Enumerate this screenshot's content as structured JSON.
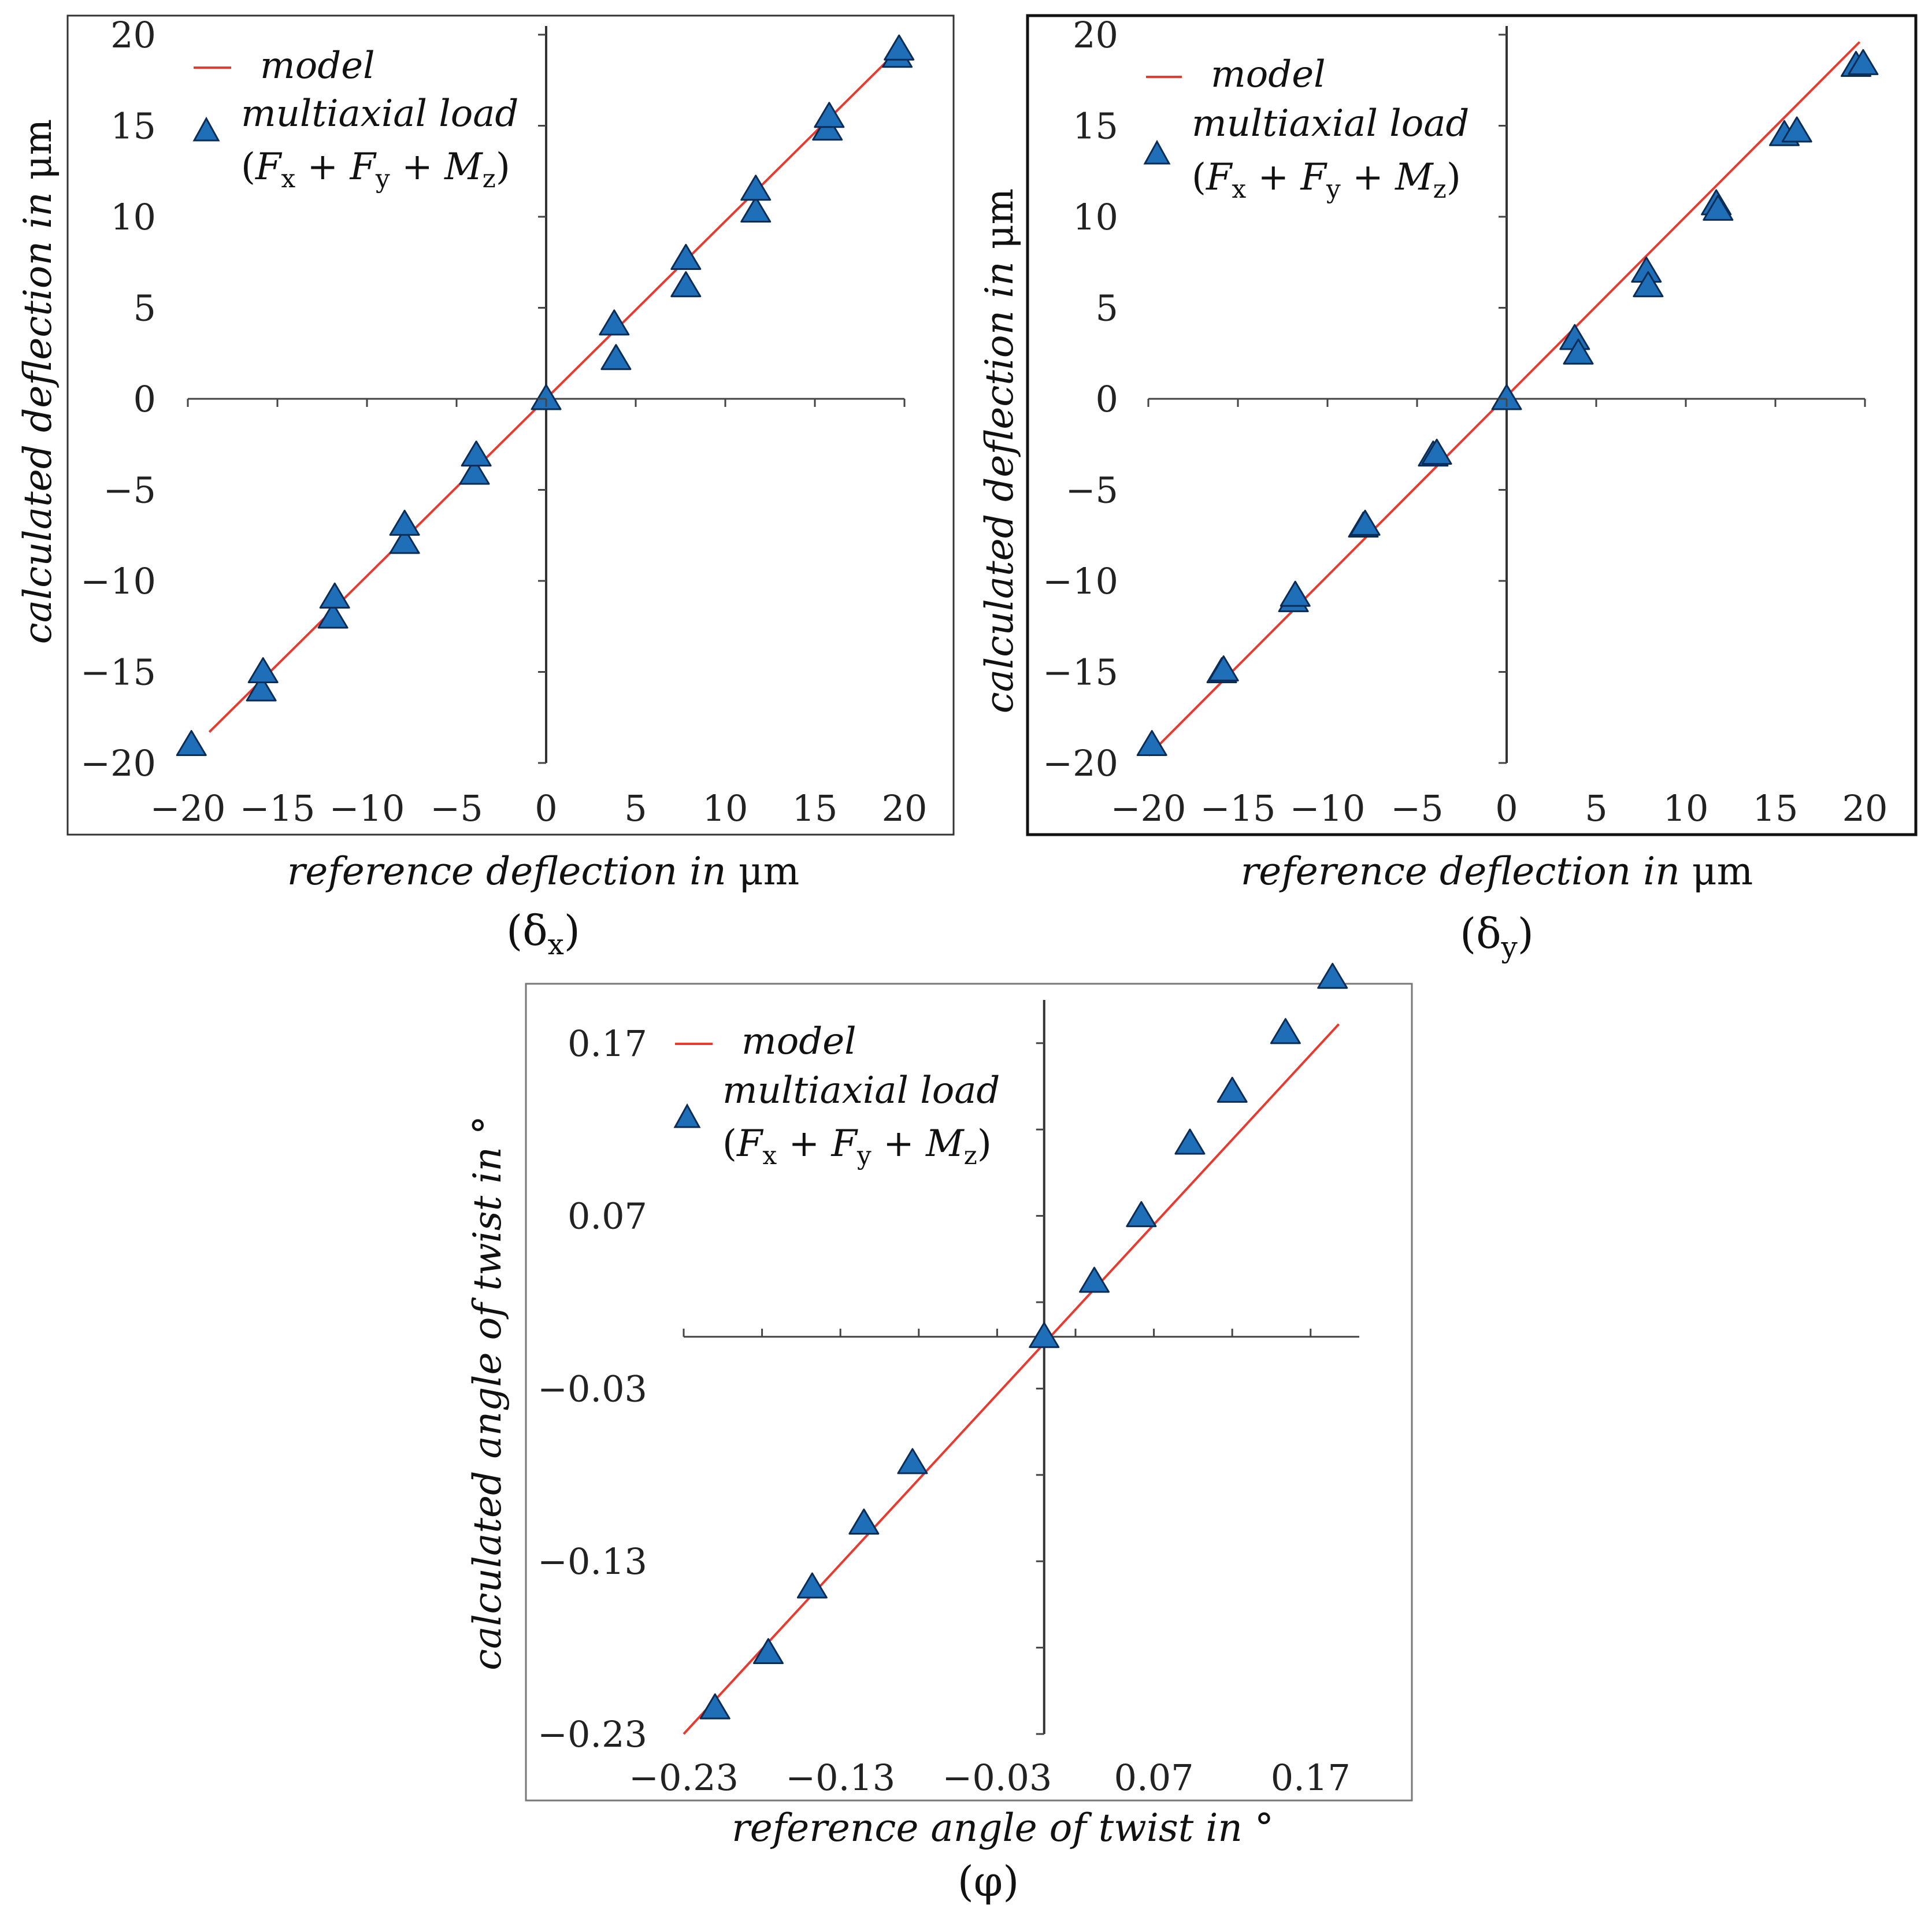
{
  "colors": {
    "model": "#e83a2f",
    "marker_fill": "#1f6fb8",
    "marker_stroke": "#0b2c55",
    "frame": "#333333"
  },
  "legend": {
    "model_label": "model",
    "load_label": "multiaxial load",
    "load_formula_open": "(",
    "load_fx": "F",
    "load_fx_sub": "x",
    "load_plus1": " + ",
    "load_fy": "F",
    "load_fy_sub": "y",
    "load_plus2": " + ",
    "load_mz": "M",
    "load_mz_sub": "z",
    "load_formula_close": ")"
  },
  "chart_data": [
    {
      "type": "scatter",
      "id": "delta-x",
      "caption": "(δ",
      "caption_sub": "x",
      "caption_close": ")",
      "xlabel": "reference deflection in",
      "xlabel_unit": "μm",
      "ylabel": "calculated deflection in",
      "ylabel_unit": "μm",
      "xlim": [
        -20,
        20
      ],
      "ylim": [
        -20,
        20
      ],
      "xticks": [
        -20,
        -15,
        -10,
        -5,
        0,
        5,
        10,
        15,
        20
      ],
      "xtick_labels": [
        "−20",
        "−15",
        "−10",
        "−5",
        "0",
        "5",
        "10",
        "15",
        "20"
      ],
      "yticks": [
        20,
        15,
        10,
        5,
        0,
        -5,
        -10,
        -15,
        -20
      ],
      "ytick_labels": [
        "20",
        "15",
        "10",
        "5",
        "0",
        "−5",
        "−10",
        "−15",
        "−20"
      ],
      "model_line": {
        "x": [
          -18.8,
          19.8
        ],
        "y": [
          -18.3,
          19.3
        ]
      },
      "series": [
        {
          "name": "multiaxial load (Fx + Fy + Mz)",
          "x": [
            -19.8,
            -15.9,
            -15.8,
            -11.9,
            -11.8,
            -7.9,
            -7.9,
            -4.0,
            -3.9,
            0,
            3.9,
            3.8,
            7.8,
            7.8,
            11.7,
            11.7,
            15.7,
            15.8,
            19.6,
            19.7
          ],
          "y": [
            -19.0,
            -16.0,
            -15.0,
            -12.0,
            -10.9,
            -7.9,
            -6.9,
            -4.1,
            -3.1,
            0,
            2.2,
            4.1,
            6.2,
            7.7,
            10.3,
            11.5,
            14.8,
            15.5,
            18.8,
            19.2
          ]
        }
      ]
    },
    {
      "type": "scatter",
      "id": "delta-y",
      "caption": "(δ",
      "caption_sub": "y",
      "caption_close": ")",
      "xlabel": "reference deflection in",
      "xlabel_unit": "μm",
      "ylabel": "calculated deflection in",
      "ylabel_unit": "μm",
      "xlim": [
        -20,
        20
      ],
      "ylim": [
        -20,
        20
      ],
      "xticks": [
        -20,
        -15,
        -10,
        -5,
        0,
        5,
        10,
        15,
        20
      ],
      "xtick_labels": [
        "−20",
        "−15",
        "−10",
        "−5",
        "0",
        "5",
        "10",
        "15",
        "20"
      ],
      "yticks": [
        20,
        15,
        10,
        5,
        0,
        -5,
        -10,
        -15,
        -20
      ],
      "ytick_labels": [
        "20",
        "15",
        "10",
        "5",
        "0",
        "−5",
        "−10",
        "−15",
        "−20"
      ],
      "model_line": {
        "x": [
          -20,
          19.7
        ],
        "y": [
          -19.6,
          19.6
        ]
      },
      "series": [
        {
          "name": "multiaxial load (Fx + Fy + Mz)",
          "x": [
            -19.8,
            -15.9,
            -15.8,
            -11.9,
            -11.8,
            -8.0,
            -7.9,
            -4.1,
            -3.9,
            0,
            3.8,
            4.0,
            7.8,
            7.9,
            11.7,
            11.8,
            15.5,
            16.2,
            19.5,
            19.9
          ],
          "y": [
            -19.0,
            -15.0,
            -14.9,
            -11.1,
            -10.8,
            -7.0,
            -6.9,
            -3.1,
            -3.0,
            0,
            3.3,
            2.5,
            7.0,
            6.2,
            10.7,
            10.4,
            14.5,
            14.7,
            18.3,
            18.4
          ]
        }
      ]
    },
    {
      "type": "scatter",
      "id": "phi",
      "caption": "(φ)",
      "xlabel": "reference angle of twist in °",
      "ylabel": "calculated angle of twist in °",
      "xlim": [
        -0.23,
        0.19
      ],
      "ylim": [
        -0.23,
        0.19
      ],
      "xticks": [
        -0.23,
        -0.13,
        -0.03,
        0.07,
        0.17
      ],
      "xtick_labels": [
        "−0.23",
        "−0.13",
        "−0.03",
        "0.07",
        "0.17"
      ],
      "yticks": [
        0.17,
        0.07,
        -0.03,
        -0.13,
        -0.23
      ],
      "ytick_labels": [
        "0.17",
        "0.07",
        "−0.03",
        "−0.13",
        "−0.23"
      ],
      "model_line": {
        "x": [
          -0.23,
          0.188
        ],
        "y": [
          -0.23,
          0.181
        ]
      },
      "series": [
        {
          "name": "multiaxial load (Fx + Fy + Mz)",
          "x": [
            -0.21,
            -0.176,
            -0.148,
            -0.115,
            -0.084,
            0.0,
            0.032,
            0.062,
            0.093,
            0.12,
            0.154,
            0.184
          ],
          "y": [
            -0.215,
            -0.183,
            -0.145,
            -0.108,
            -0.073,
            0.0,
            0.032,
            0.07,
            0.112,
            0.142,
            0.176,
            0.208
          ]
        }
      ]
    }
  ]
}
